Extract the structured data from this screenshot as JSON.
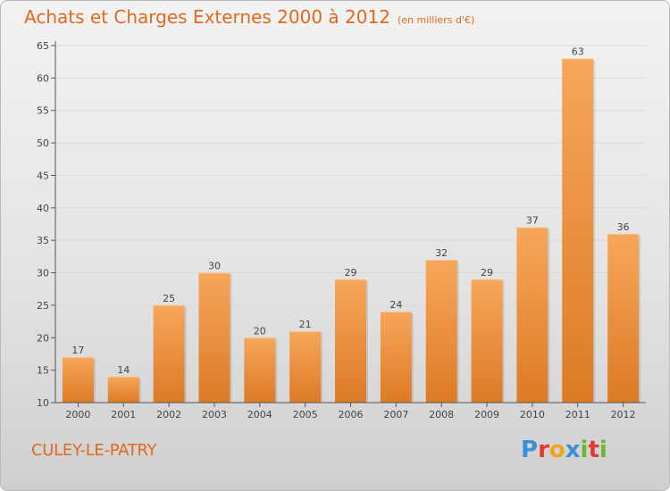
{
  "header": {
    "title": "Achats et Charges Externes 2000 à 2012",
    "subtitle": "(en milliers d'€)"
  },
  "commune": "CULEY-LE-PATRY",
  "logo": {
    "text": "Proxiti",
    "letters": [
      {
        "ch": "P",
        "color": "#3a8fd6"
      },
      {
        "ch": "r",
        "color": "#e23a2e"
      },
      {
        "ch": "o",
        "color": "#f0a31c"
      },
      {
        "ch": "x",
        "color": "#3a8fd6"
      },
      {
        "ch": "i",
        "color": "#6ab82f"
      },
      {
        "ch": "t",
        "color": "#e23a2e"
      },
      {
        "ch": "i",
        "color": "#6ab82f"
      }
    ]
  },
  "colors": {
    "accent": "#e2691e",
    "bar_top": "#f6a75a",
    "bar_bottom": "#dd7a25",
    "axis": "#555555",
    "grid": "#d9d9d9"
  },
  "chart_data": {
    "type": "bar",
    "title": "Achats et Charges Externes 2000 à 2012",
    "subtitle": "(en milliers d'€)",
    "categories": [
      "2000",
      "2001",
      "2002",
      "2003",
      "2004",
      "2005",
      "2006",
      "2007",
      "2008",
      "2009",
      "2010",
      "2011",
      "2012"
    ],
    "values": [
      17,
      14,
      25,
      30,
      20,
      21,
      29,
      24,
      32,
      29,
      37,
      63,
      36
    ],
    "ylim": [
      10,
      65
    ],
    "yticks": [
      10,
      15,
      20,
      25,
      30,
      35,
      40,
      45,
      50,
      55,
      60,
      65
    ],
    "grid": true,
    "data_labels": true
  }
}
